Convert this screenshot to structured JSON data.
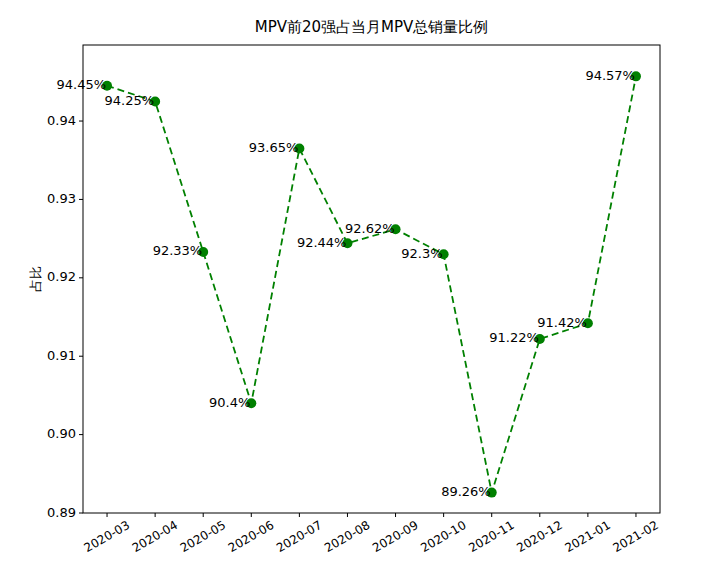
{
  "chart_data": {
    "type": "line",
    "title": "MPV前20强占当月MPV总销量比例",
    "y_label": "占比",
    "categories": [
      "2020-03",
      "2020-04",
      "2020-05",
      "2020-06",
      "2020-07",
      "2020-08",
      "2020-09",
      "2020-10",
      "2020-11",
      "2020-12",
      "2021-01",
      "2021-02"
    ],
    "values": [
      0.9445,
      0.9425,
      0.9233,
      0.904,
      0.9365,
      0.9244,
      0.9262,
      0.923,
      0.8926,
      0.9122,
      0.9142,
      0.9457
    ],
    "value_labels": [
      "94.45%",
      "94.25%",
      "92.33%",
      "90.4%",
      "93.65%",
      "92.44%",
      "92.62%",
      "92.3%",
      "89.26%",
      "91.22%",
      "91.42%",
      "94.57%"
    ],
    "color": "#008000",
    "marker": "circle",
    "line_style": "dashed",
    "data_labels": true,
    "grid": false,
    "ylim": [
      0.89,
      0.9497
    ],
    "yticks": [
      0.89,
      {
        "value": 0.9,
        "label": "0.90"
      },
      0.91,
      0.92,
      0.93,
      0.94
    ]
  }
}
